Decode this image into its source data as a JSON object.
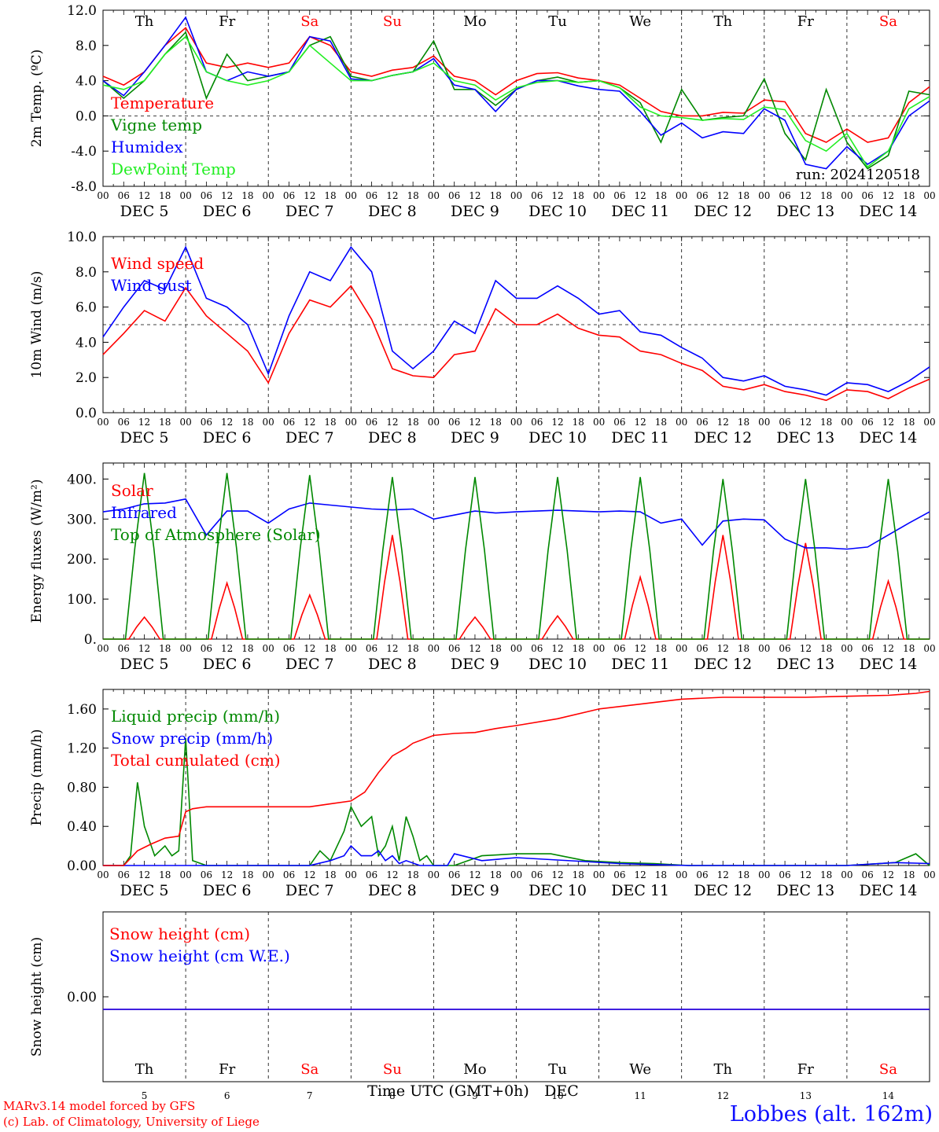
{
  "colors": {
    "red": "#ff0000",
    "dark_green": "#008800",
    "blue": "#0000ff",
    "light_green": "#22ee22",
    "axis": "#000000",
    "weekend": "#ff0000"
  },
  "days": [
    "Th",
    "Fr",
    "Sa",
    "Su",
    "Mo",
    "Tu",
    "We",
    "Th",
    "Fr",
    "Sa"
  ],
  "weekend_days": [
    "Sa",
    "Su"
  ],
  "date_labels": [
    "DEC  5",
    "DEC  6",
    "DEC  7",
    "DEC  8",
    "DEC  9",
    "DEC 10",
    "DEC 11",
    "DEC 12",
    "DEC 13",
    "DEC 14"
  ],
  "hour_ticks": [
    "00",
    "06",
    "12",
    "18"
  ],
  "bottom_day_numbers": [
    "5",
    "6",
    "7",
    "8",
    "9",
    "10",
    "11",
    "12",
    "13",
    "14"
  ],
  "footer": {
    "xlabel": "Time UTC (GMT+0h)",
    "month": "DEC",
    "credit_line1": "MARv3.14 model forced by GFS",
    "credit_line2": "(c) Lab. of Climatology, University of Liege",
    "station": "Lobbes (alt. 162m)"
  },
  "chart_data": [
    {
      "type": "line",
      "ylabel": "2m Temp. (ºC)",
      "ylim": [
        -8,
        12
      ],
      "yticks": [
        "12.0",
        "8.0",
        "4.0",
        "0.0",
        "-4.0",
        "-8.0"
      ],
      "ytick_values": [
        12,
        8,
        4,
        0,
        -4,
        -8
      ],
      "ref_line": 0,
      "annotation": "run: 2024120518",
      "x_unit": "hours since DEC 5 00 UTC",
      "series": [
        {
          "name": "Temperature",
          "color": "#ff0000",
          "x": [
            0,
            6,
            12,
            18,
            24,
            30,
            36,
            42,
            48,
            54,
            60,
            66,
            72,
            78,
            84,
            90,
            96,
            102,
            108,
            114,
            120,
            126,
            132,
            138,
            144,
            150,
            156,
            162,
            168,
            174,
            180,
            186,
            192,
            198,
            204,
            210,
            216,
            222,
            228,
            234,
            240
          ],
          "y": [
            4.5,
            3.5,
            5,
            8,
            10,
            6,
            5.5,
            6,
            5.5,
            6,
            9,
            8,
            5,
            4.5,
            5.2,
            5.5,
            6.8,
            4.5,
            4,
            2.4,
            4,
            4.8,
            4.9,
            4.3,
            4,
            3.5,
            2,
            0.5,
            0,
            0,
            0.4,
            0.3,
            1.8,
            1.6,
            -2,
            -3,
            -1.5,
            -3,
            -2.5,
            1.5,
            3.3
          ]
        },
        {
          "name": "Vigne temp",
          "color": "#008800",
          "x": [
            0,
            6,
            12,
            18,
            24,
            30,
            36,
            42,
            48,
            54,
            60,
            66,
            72,
            78,
            84,
            90,
            96,
            102,
            108,
            114,
            120,
            126,
            132,
            138,
            144,
            150,
            156,
            162,
            168,
            174,
            180,
            186,
            192,
            198,
            204,
            210,
            216,
            222,
            228,
            234,
            240
          ],
          "y": [
            4,
            2,
            4,
            7,
            9.5,
            2,
            7,
            4,
            4.5,
            5,
            8,
            9,
            4.5,
            4,
            4.6,
            5,
            8.5,
            3,
            3,
            1.2,
            3,
            4,
            4.4,
            3.8,
            4,
            3.2,
            1.5,
            -3,
            3,
            -0.5,
            -0.2,
            0,
            4.2,
            -2,
            -5,
            3,
            -3,
            -6,
            -4.5,
            2.8,
            2.4
          ]
        },
        {
          "name": "Humidex",
          "color": "#0000ff",
          "x": [
            0,
            6,
            12,
            18,
            24,
            30,
            36,
            42,
            48,
            54,
            60,
            66,
            72,
            78,
            84,
            90,
            96,
            102,
            108,
            114,
            120,
            126,
            132,
            138,
            144,
            150,
            156,
            162,
            168,
            174,
            180,
            186,
            192,
            198,
            204,
            210,
            216,
            222,
            228,
            234,
            240
          ],
          "y": [
            4,
            2.3,
            5,
            8,
            11.2,
            5,
            4,
            5,
            4.5,
            5,
            9,
            8.5,
            4.2,
            4,
            4.6,
            5,
            6.5,
            3.5,
            3,
            0.5,
            3,
            4,
            4,
            3.4,
            3,
            2.8,
            0.5,
            -2.2,
            -0.8,
            -2.5,
            -1.8,
            -2,
            0.8,
            -0.5,
            -5.5,
            -6,
            -3.5,
            -5.5,
            -4,
            0,
            1.7
          ]
        },
        {
          "name": "DewPoint Temp",
          "color": "#22ee22",
          "x": [
            0,
            6,
            12,
            18,
            24,
            30,
            36,
            42,
            48,
            54,
            60,
            66,
            72,
            78,
            84,
            90,
            96,
            102,
            108,
            114,
            120,
            126,
            132,
            138,
            144,
            150,
            156,
            162,
            168,
            174,
            180,
            186,
            192,
            198,
            204,
            210,
            216,
            222,
            228,
            234,
            240
          ],
          "y": [
            3.5,
            3,
            4,
            7,
            9,
            5,
            4,
            3.5,
            4,
            5,
            8,
            6,
            4,
            4,
            4.6,
            5,
            6,
            4,
            3.5,
            1.8,
            3.2,
            3.8,
            4,
            3.8,
            4,
            3.2,
            1,
            0,
            -0.2,
            -0.5,
            -0.3,
            -0.4,
            1,
            0.7,
            -2.8,
            -4,
            -2,
            -5.8,
            -4,
            0.8,
            2.2
          ]
        }
      ]
    },
    {
      "type": "line",
      "ylabel": "10m Wind (m/s)",
      "ylim": [
        0,
        10
      ],
      "yticks": [
        "10.0",
        "8.0",
        "6.0",
        "4.0",
        "2.0",
        "0.0"
      ],
      "ytick_values": [
        10,
        8,
        6,
        4,
        2,
        0
      ],
      "ref_line": 5,
      "series": [
        {
          "name": "Wind speed",
          "color": "#ff0000",
          "x": [
            0,
            6,
            12,
            18,
            24,
            30,
            36,
            42,
            48,
            54,
            60,
            66,
            72,
            78,
            84,
            90,
            96,
            102,
            108,
            114,
            120,
            126,
            132,
            138,
            144,
            150,
            156,
            162,
            168,
            174,
            180,
            186,
            192,
            198,
            204,
            210,
            216,
            222,
            228,
            234,
            240
          ],
          "y": [
            3.3,
            4.5,
            5.8,
            5.2,
            7.1,
            5.5,
            4.5,
            3.5,
            1.7,
            4.5,
            6.4,
            6,
            7.2,
            5.3,
            2.5,
            2.1,
            2,
            3.3,
            3.5,
            5.9,
            5,
            5,
            5.6,
            4.8,
            4.4,
            4.3,
            3.5,
            3.3,
            2.8,
            2.4,
            1.5,
            1.3,
            1.6,
            1.2,
            1,
            0.7,
            1.3,
            1.2,
            0.8,
            1.4,
            1.9
          ]
        },
        {
          "name": "Wind gust",
          "color": "#0000ff",
          "x": [
            0,
            6,
            12,
            18,
            24,
            30,
            36,
            42,
            48,
            54,
            60,
            66,
            72,
            78,
            84,
            90,
            96,
            102,
            108,
            114,
            120,
            126,
            132,
            138,
            144,
            150,
            156,
            162,
            168,
            174,
            180,
            186,
            192,
            198,
            204,
            210,
            216,
            222,
            228,
            234,
            240
          ],
          "y": [
            4.3,
            6,
            7.5,
            7,
            9.4,
            6.5,
            6,
            5,
            2.2,
            5.5,
            8,
            7.5,
            9.4,
            8,
            3.5,
            2.5,
            3.5,
            5.2,
            4.5,
            7.5,
            6.5,
            6.5,
            7.2,
            6.5,
            5.6,
            5.8,
            4.6,
            4.4,
            3.7,
            3.1,
            2,
            1.8,
            2.1,
            1.5,
            1.3,
            1,
            1.7,
            1.6,
            1.2,
            1.8,
            2.6
          ]
        }
      ]
    },
    {
      "type": "line",
      "ylabel": "Energy fluxes (W/m²)",
      "ylim": [
        0,
        440
      ],
      "yticks": [
        "400.",
        "300.",
        "200.",
        "100.",
        "0."
      ],
      "ytick_values": [
        400,
        300,
        200,
        100,
        0
      ],
      "series": [
        {
          "name": "Solar",
          "color": "#ff0000",
          "peaks": [
            55,
            140,
            110,
            260,
            55,
            58,
            155,
            260,
            240,
            145
          ]
        },
        {
          "name": "Infrared",
          "color": "#0000ff",
          "x": [
            0,
            6,
            12,
            18,
            24,
            30,
            36,
            42,
            48,
            54,
            60,
            66,
            72,
            78,
            84,
            90,
            96,
            102,
            108,
            114,
            120,
            126,
            132,
            138,
            144,
            150,
            156,
            162,
            168,
            174,
            180,
            186,
            192,
            198,
            204,
            210,
            216,
            222,
            228,
            234,
            240
          ],
          "y": [
            318,
            325,
            338,
            340,
            350,
            260,
            320,
            320,
            290,
            325,
            340,
            335,
            330,
            325,
            323,
            325,
            300,
            310,
            320,
            315,
            318,
            320,
            322,
            320,
            318,
            320,
            318,
            290,
            300,
            235,
            295,
            300,
            298,
            250,
            228,
            228,
            225,
            230,
            260,
            290,
            318
          ]
        },
        {
          "name": "Top of Atmosphere (Solar)",
          "color": "#008800",
          "peaks": [
            415,
            415,
            410,
            405,
            405,
            405,
            405,
            400,
            400,
            400
          ]
        }
      ]
    },
    {
      "type": "line",
      "ylabel": "Precip (mm/h)",
      "ylim": [
        0,
        1.8
      ],
      "yticks": [
        "1.60",
        "1.20",
        "0.80",
        "0.40",
        "0.00"
      ],
      "ytick_values": [
        1.6,
        1.2,
        0.8,
        0.4,
        0
      ],
      "series": [
        {
          "name": "Liquid precip (mm/h)",
          "color": "#008800",
          "x": [
            0,
            6,
            8,
            10,
            12,
            15,
            18,
            20,
            22,
            24,
            26,
            30,
            36,
            48,
            60,
            63,
            66,
            70,
            72,
            75,
            78,
            80,
            82,
            84,
            86,
            88,
            90,
            92,
            94,
            96,
            100,
            102,
            110,
            120,
            130,
            140,
            150,
            160,
            170,
            180,
            200,
            216,
            230,
            236,
            240
          ],
          "y": [
            0,
            0,
            0.1,
            0.85,
            0.4,
            0.1,
            0.2,
            0.1,
            0.15,
            1.3,
            0.05,
            0,
            0,
            0,
            0,
            0.15,
            0.05,
            0.35,
            0.6,
            0.4,
            0.5,
            0.1,
            0.2,
            0.4,
            0.05,
            0.5,
            0.3,
            0.05,
            0.1,
            0,
            0,
            0,
            0.1,
            0.12,
            0.12,
            0.05,
            0.03,
            0.02,
            0,
            0,
            0,
            0,
            0.03,
            0.12,
            0
          ]
        },
        {
          "name": "Snow precip (mm/h)",
          "color": "#0000ff",
          "x": [
            0,
            60,
            66,
            70,
            72,
            75,
            78,
            80,
            82,
            84,
            86,
            88,
            92,
            96,
            100,
            102,
            110,
            120,
            130,
            140,
            150,
            160,
            170,
            180,
            200,
            216,
            230,
            240
          ],
          "y": [
            0,
            0,
            0.05,
            0.1,
            0.2,
            0.1,
            0.1,
            0.15,
            0.05,
            0.1,
            0.02,
            0.05,
            0,
            0,
            0,
            0.12,
            0.05,
            0.08,
            0.06,
            0.04,
            0.02,
            0.01,
            0,
            0,
            0,
            0,
            0.03,
            0.02
          ]
        },
        {
          "name": "Total cumulated (cm)",
          "color": "#ff0000",
          "x": [
            0,
            6,
            10,
            14,
            18,
            22,
            24,
            26,
            30,
            36,
            48,
            60,
            66,
            72,
            76,
            80,
            84,
            88,
            90,
            96,
            102,
            108,
            114,
            120,
            132,
            144,
            156,
            168,
            180,
            192,
            204,
            216,
            228,
            236,
            240
          ],
          "y": [
            0,
            0,
            0.15,
            0.22,
            0.28,
            0.3,
            0.55,
            0.58,
            0.6,
            0.6,
            0.6,
            0.6,
            0.63,
            0.66,
            0.75,
            0.95,
            1.12,
            1.2,
            1.25,
            1.33,
            1.35,
            1.36,
            1.4,
            1.43,
            1.5,
            1.6,
            1.65,
            1.7,
            1.72,
            1.72,
            1.72,
            1.73,
            1.74,
            1.76,
            1.78
          ]
        }
      ]
    },
    {
      "type": "line",
      "ylabel": "Snow height (cm)",
      "yticks": [
        "0.00"
      ],
      "ytick_values": [
        0
      ],
      "series": [
        {
          "name": "Snow height (cm)",
          "color": "#ff0000",
          "x": [
            0,
            240
          ],
          "y": [
            0,
            0
          ]
        },
        {
          "name": "Snow height (cm W.E.)",
          "color": "#0000ff",
          "x": [
            0,
            240
          ],
          "y": [
            0,
            0
          ]
        }
      ]
    }
  ]
}
